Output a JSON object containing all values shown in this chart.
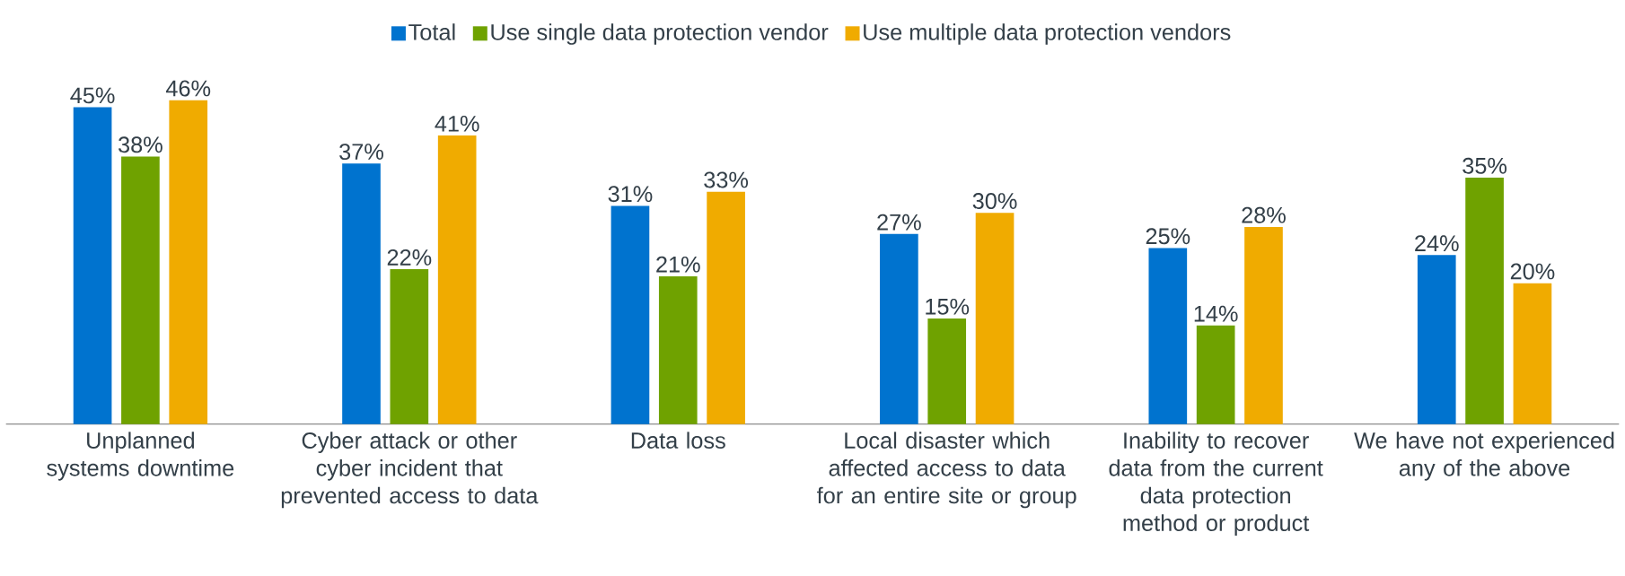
{
  "chart_data": {
    "type": "bar",
    "legend": "top",
    "categories": [
      "Unplanned systems downtime",
      "Cyber attack or other cyber incident that prevented access to data",
      "Data loss",
      "Local disaster which affected access to data for an entire site or group",
      "Inability to recover data from the current data protection method or product",
      "We have not experienced any of the above"
    ],
    "series": [
      {
        "name": "Total",
        "color": "#0073cf",
        "values": [
          45,
          37,
          31,
          27,
          25,
          24
        ],
        "value_labels": [
          "45%",
          "37%",
          "31%",
          "27%",
          "25%",
          "24%"
        ]
      },
      {
        "name": "Use single data protection vendor",
        "color": "#6fa200",
        "values": [
          38,
          22,
          21,
          15,
          14,
          35
        ],
        "value_labels": [
          "38%",
          "22%",
          "21%",
          "15%",
          "14%",
          "35%"
        ]
      },
      {
        "name": "Use multiple data protection vendors",
        "color": "#f0ab00",
        "values": [
          46,
          41,
          33,
          30,
          28,
          20
        ],
        "value_labels": [
          "46%",
          "41%",
          "33%",
          "30%",
          "28%",
          "20%"
        ]
      }
    ]
  }
}
